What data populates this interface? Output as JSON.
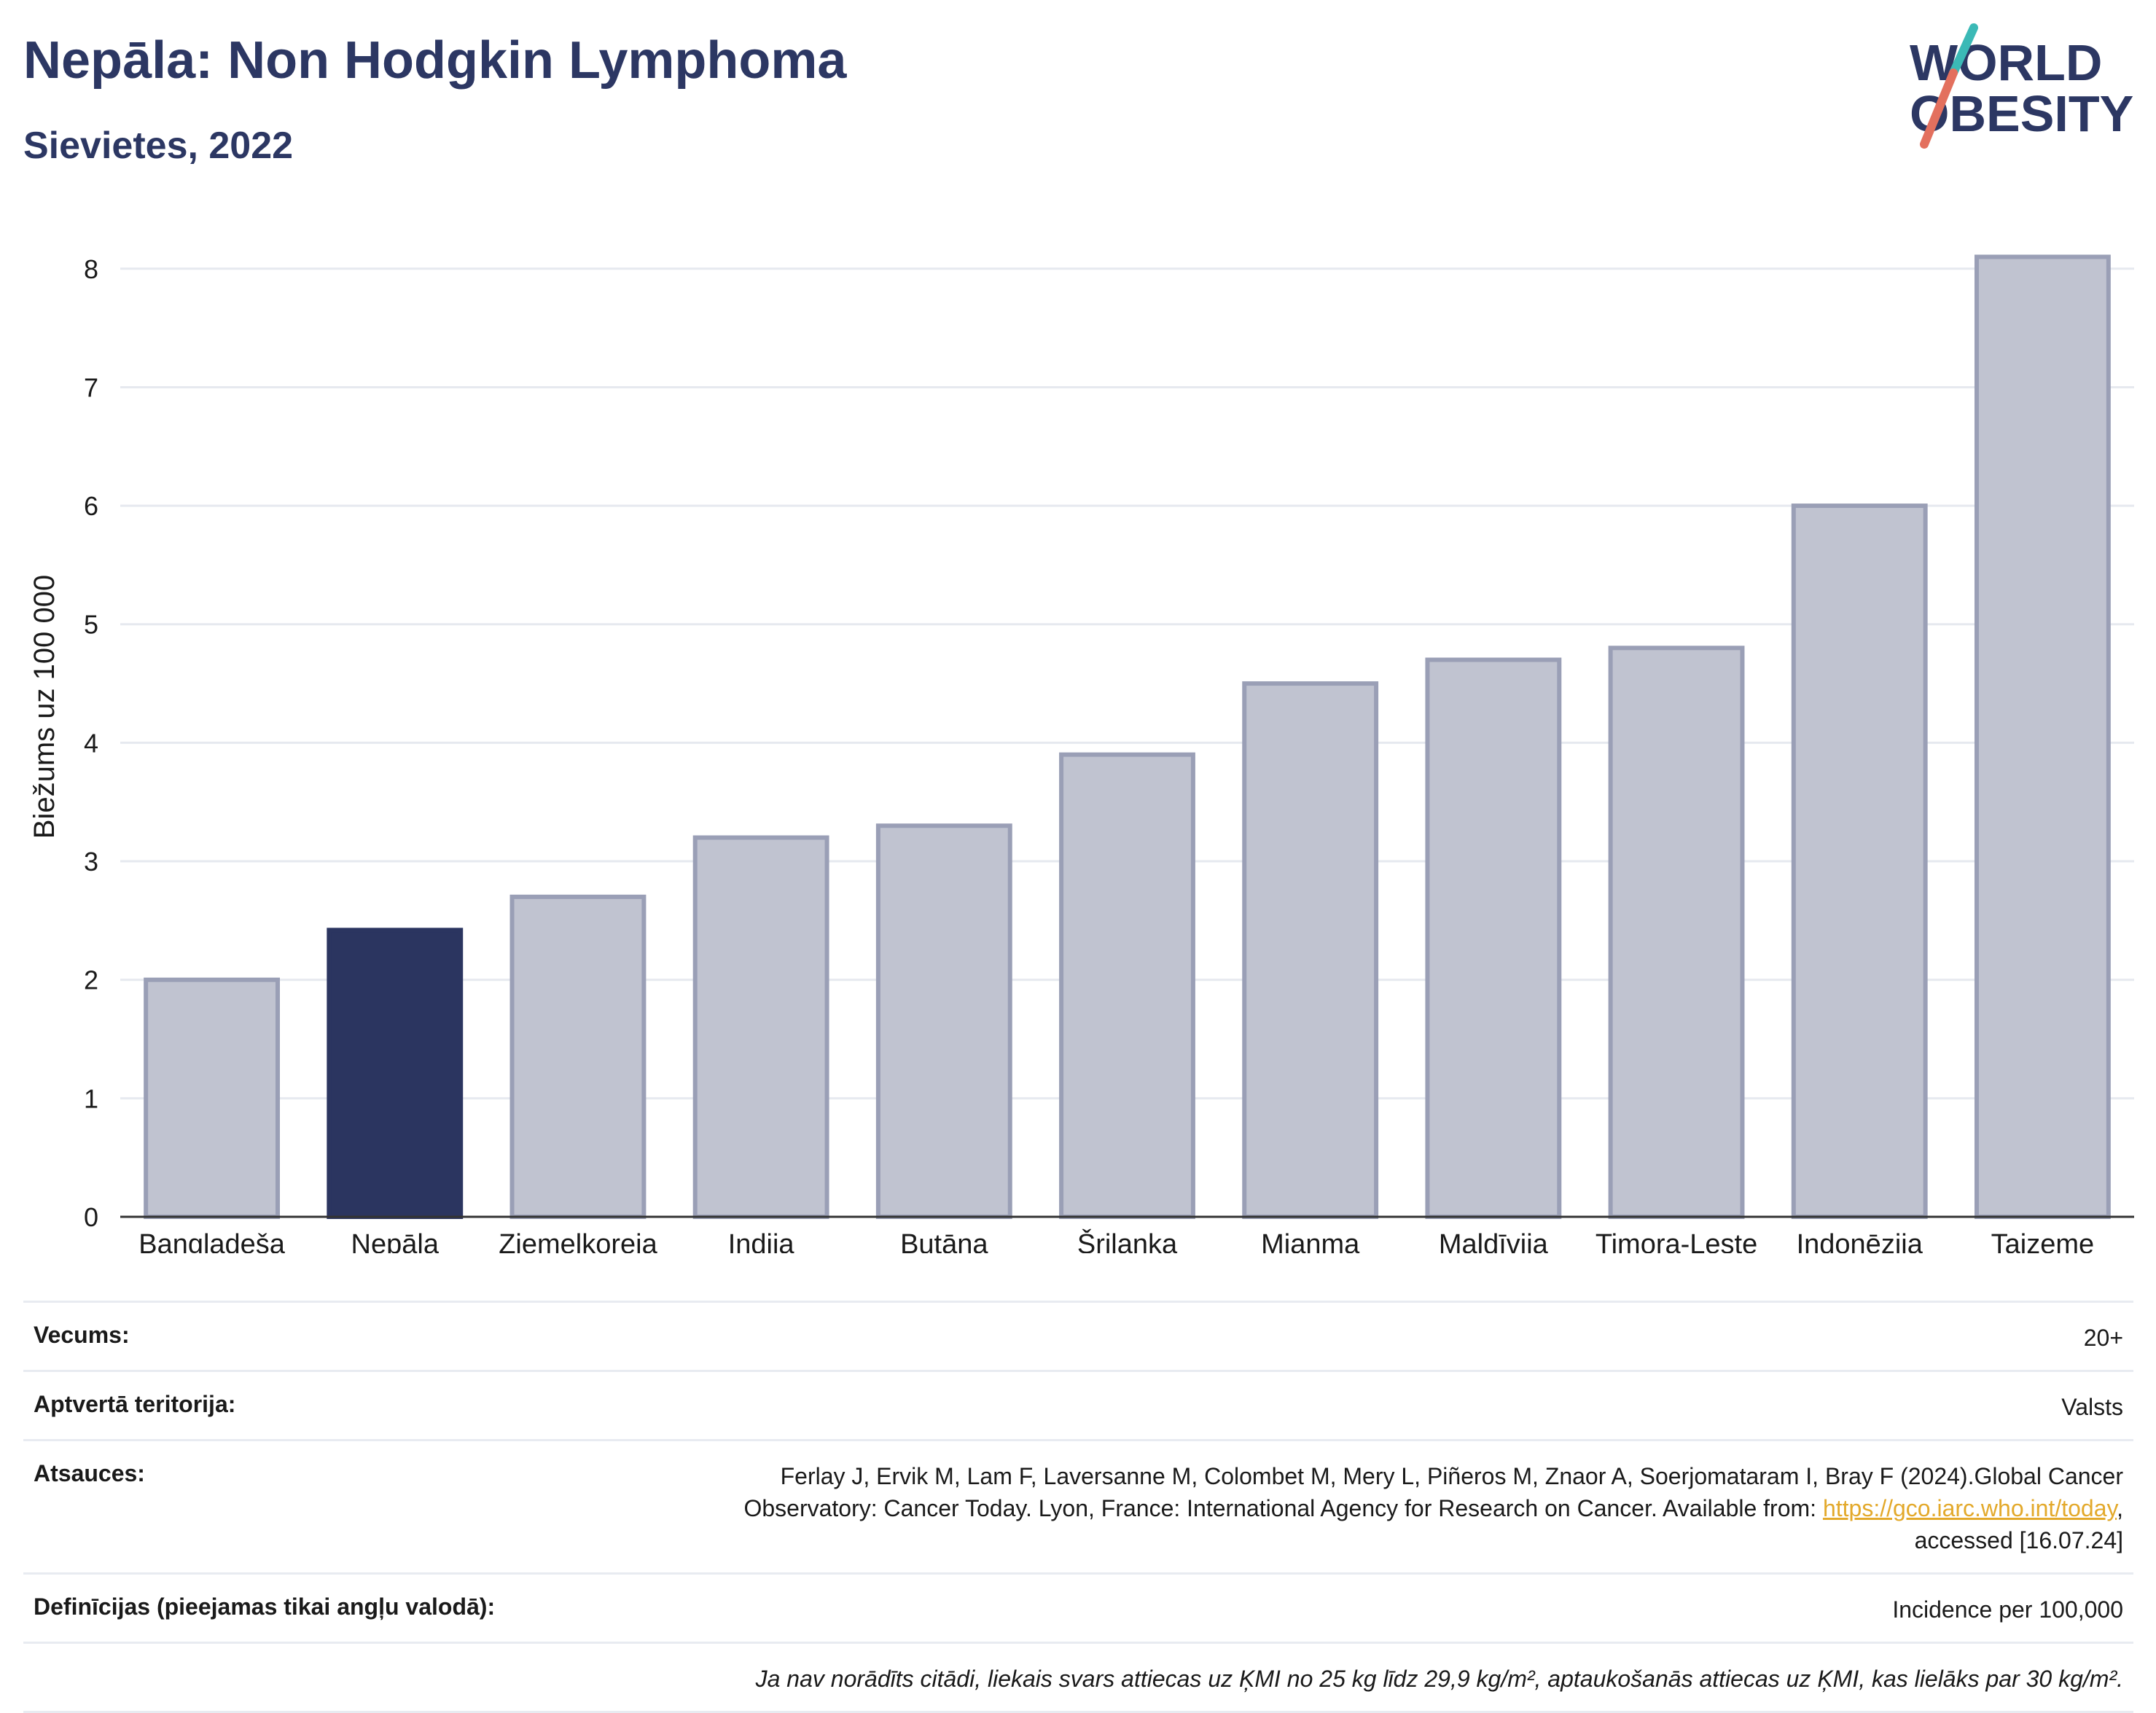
{
  "header": {
    "title": "Nepāla: Non Hodgkin Lymphoma",
    "subtitle": "Sievietes, 2022"
  },
  "logo": {
    "line1": "WORLD",
    "line2": "OBESITY"
  },
  "chart_data": {
    "type": "bar",
    "ylabel": "Biežums uz 100 000",
    "xlabel": "",
    "ylim": [
      0,
      8.3
    ],
    "yticks": [
      0,
      1,
      2,
      3,
      4,
      5,
      6,
      7,
      8
    ],
    "grid": true,
    "categories": [
      "Bangladeša",
      "Nepāla",
      "Ziemeļkoreja",
      "Indija",
      "Butāna",
      "Šrilanka",
      "Mjanma",
      "Maldīvija",
      "Timora-Leste",
      "Indonēzija",
      "Taizeme"
    ],
    "values": [
      2.0,
      2.42,
      2.7,
      3.2,
      3.3,
      3.9,
      4.5,
      4.7,
      4.8,
      6.0,
      8.1
    ],
    "highlight": "Nepāla",
    "colors": {
      "highlight": "#2b3560",
      "default": "#c0c3d0",
      "default_border": "#9a9fb6"
    }
  },
  "meta": {
    "age": {
      "label": "Vecums:",
      "value": "20+"
    },
    "coverage": {
      "label": "Aptvertā teritorija:",
      "value": "Valsts"
    },
    "references": {
      "label": "Atsauces:",
      "line1": "Ferlay J, Ervik M, Lam F, Laversanne M, Colombet M, Mery L, Piñeros M, Znaor A, Soerjomataram I, Bray F (2024).Global Cancer",
      "line2": "Observatory: Cancer Today. Lyon, France: International Agency for Research on Cancer. Available from: ",
      "link": "https://gco.iarc.who.int/today",
      "line2_end": ",",
      "line3": "accessed [16.07.24]"
    },
    "definitions": {
      "label": "Definīcijas (pieejamas tikai angļu valodā):",
      "value": "Incidence per 100,000"
    },
    "note": "Ja nav norādīts citādi, liekais svars attiecas uz ĶMI no 25 kg līdz 29,9 kg/m², aptaukošanās attiecas uz ĶMI, kas lielāks par 30 kg/m²."
  }
}
